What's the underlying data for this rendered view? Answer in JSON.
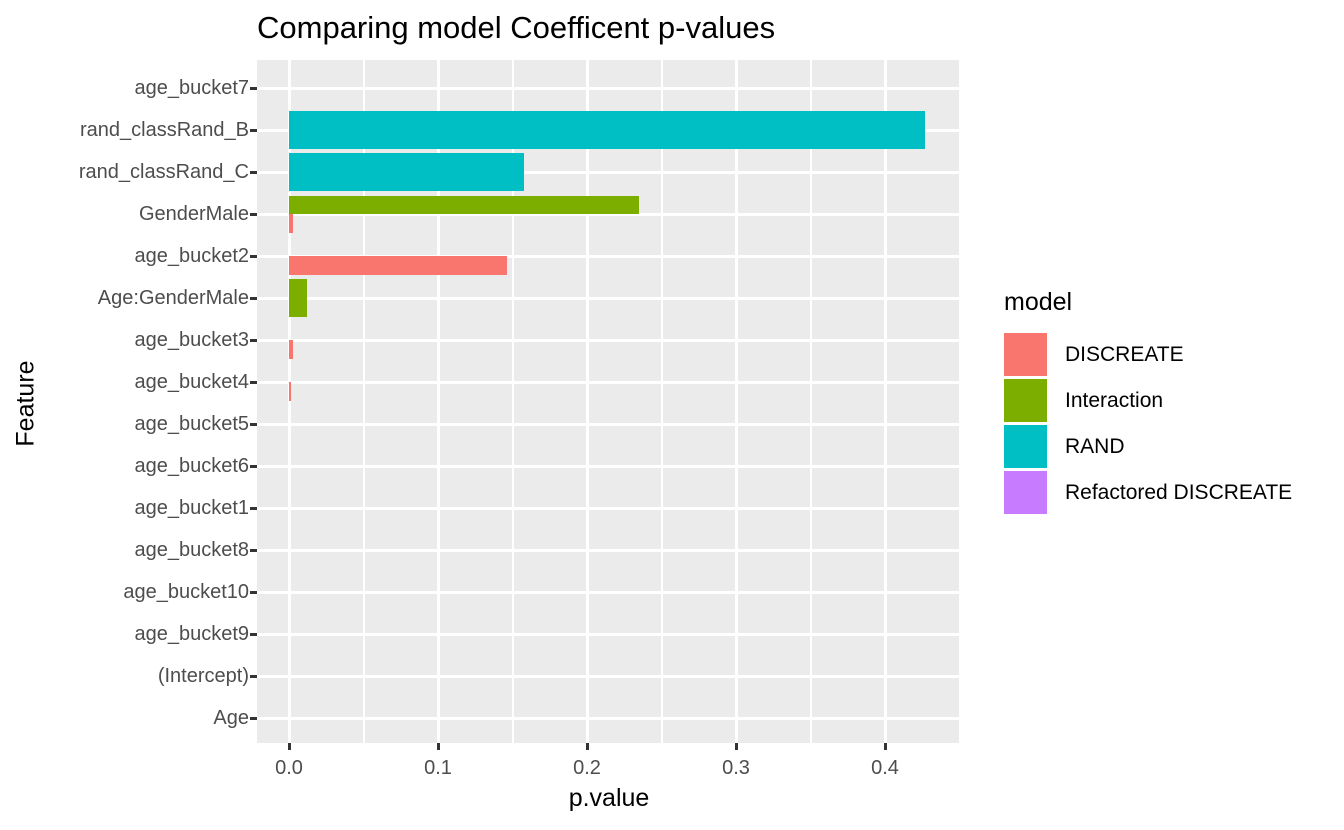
{
  "chart_data": {
    "type": "bar",
    "orientation": "horizontal",
    "title": "Comparing model Coefficent p-values",
    "xlabel": "p.value",
    "ylabel": "Feature",
    "xlim": [
      -0.021,
      0.45
    ],
    "xticks": [
      "0.0",
      "0.1",
      "0.2",
      "0.3",
      "0.4"
    ],
    "xticks_values": [
      0.0,
      0.1,
      0.2,
      0.3,
      0.4
    ],
    "xticks_minor_values": [
      0.05,
      0.15,
      0.25,
      0.35
    ],
    "grid": "white major and minor gridlines on grey panel",
    "panel_color": "#EBEBEB",
    "categories": [
      "age_bucket7",
      "rand_classRand_B",
      "rand_classRand_C",
      "GenderMale",
      "age_bucket2",
      "Age:GenderMale",
      "age_bucket3",
      "age_bucket4",
      "age_bucket5",
      "age_bucket6",
      "age_bucket1",
      "age_bucket8",
      "age_bucket10",
      "age_bucket9",
      "(Intercept)",
      "Age"
    ],
    "legend": {
      "title": "model",
      "position": "right",
      "entries": [
        {
          "name": "DISCREATE",
          "color": "#F8766D"
        },
        {
          "name": "Interaction",
          "color": "#7CAE00"
        },
        {
          "name": "RAND",
          "color": "#00BFC4"
        },
        {
          "name": "Refactored DISCREATE",
          "color": "#C77CFF"
        }
      ]
    },
    "bars": [
      {
        "category": "rand_classRand_B",
        "model": "RAND",
        "value": 0.427,
        "slot": "full"
      },
      {
        "category": "rand_classRand_C",
        "model": "RAND",
        "value": 0.158,
        "slot": "full"
      },
      {
        "category": "GenderMale",
        "model": "Interaction",
        "value": 0.235,
        "slot": "top"
      },
      {
        "category": "GenderMale",
        "model": "DISCREATE",
        "value": 0.003,
        "slot": "bottom"
      },
      {
        "category": "age_bucket2",
        "model": "DISCREATE",
        "value": 0.146,
        "slot": "bottom"
      },
      {
        "category": "Age:GenderMale",
        "model": "Interaction",
        "value": 0.012,
        "slot": "full"
      },
      {
        "category": "age_bucket3",
        "model": "DISCREATE",
        "value": 0.003,
        "slot": "bottom"
      },
      {
        "category": "age_bucket4",
        "model": "DISCREATE",
        "value": 0.001,
        "slot": "bottom"
      }
    ],
    "note_zero_rows": [
      "age_bucket7",
      "age_bucket5",
      "age_bucket6",
      "age_bucket1",
      "age_bucket8",
      "age_bucket10",
      "age_bucket9",
      "(Intercept)",
      "Age"
    ]
  }
}
